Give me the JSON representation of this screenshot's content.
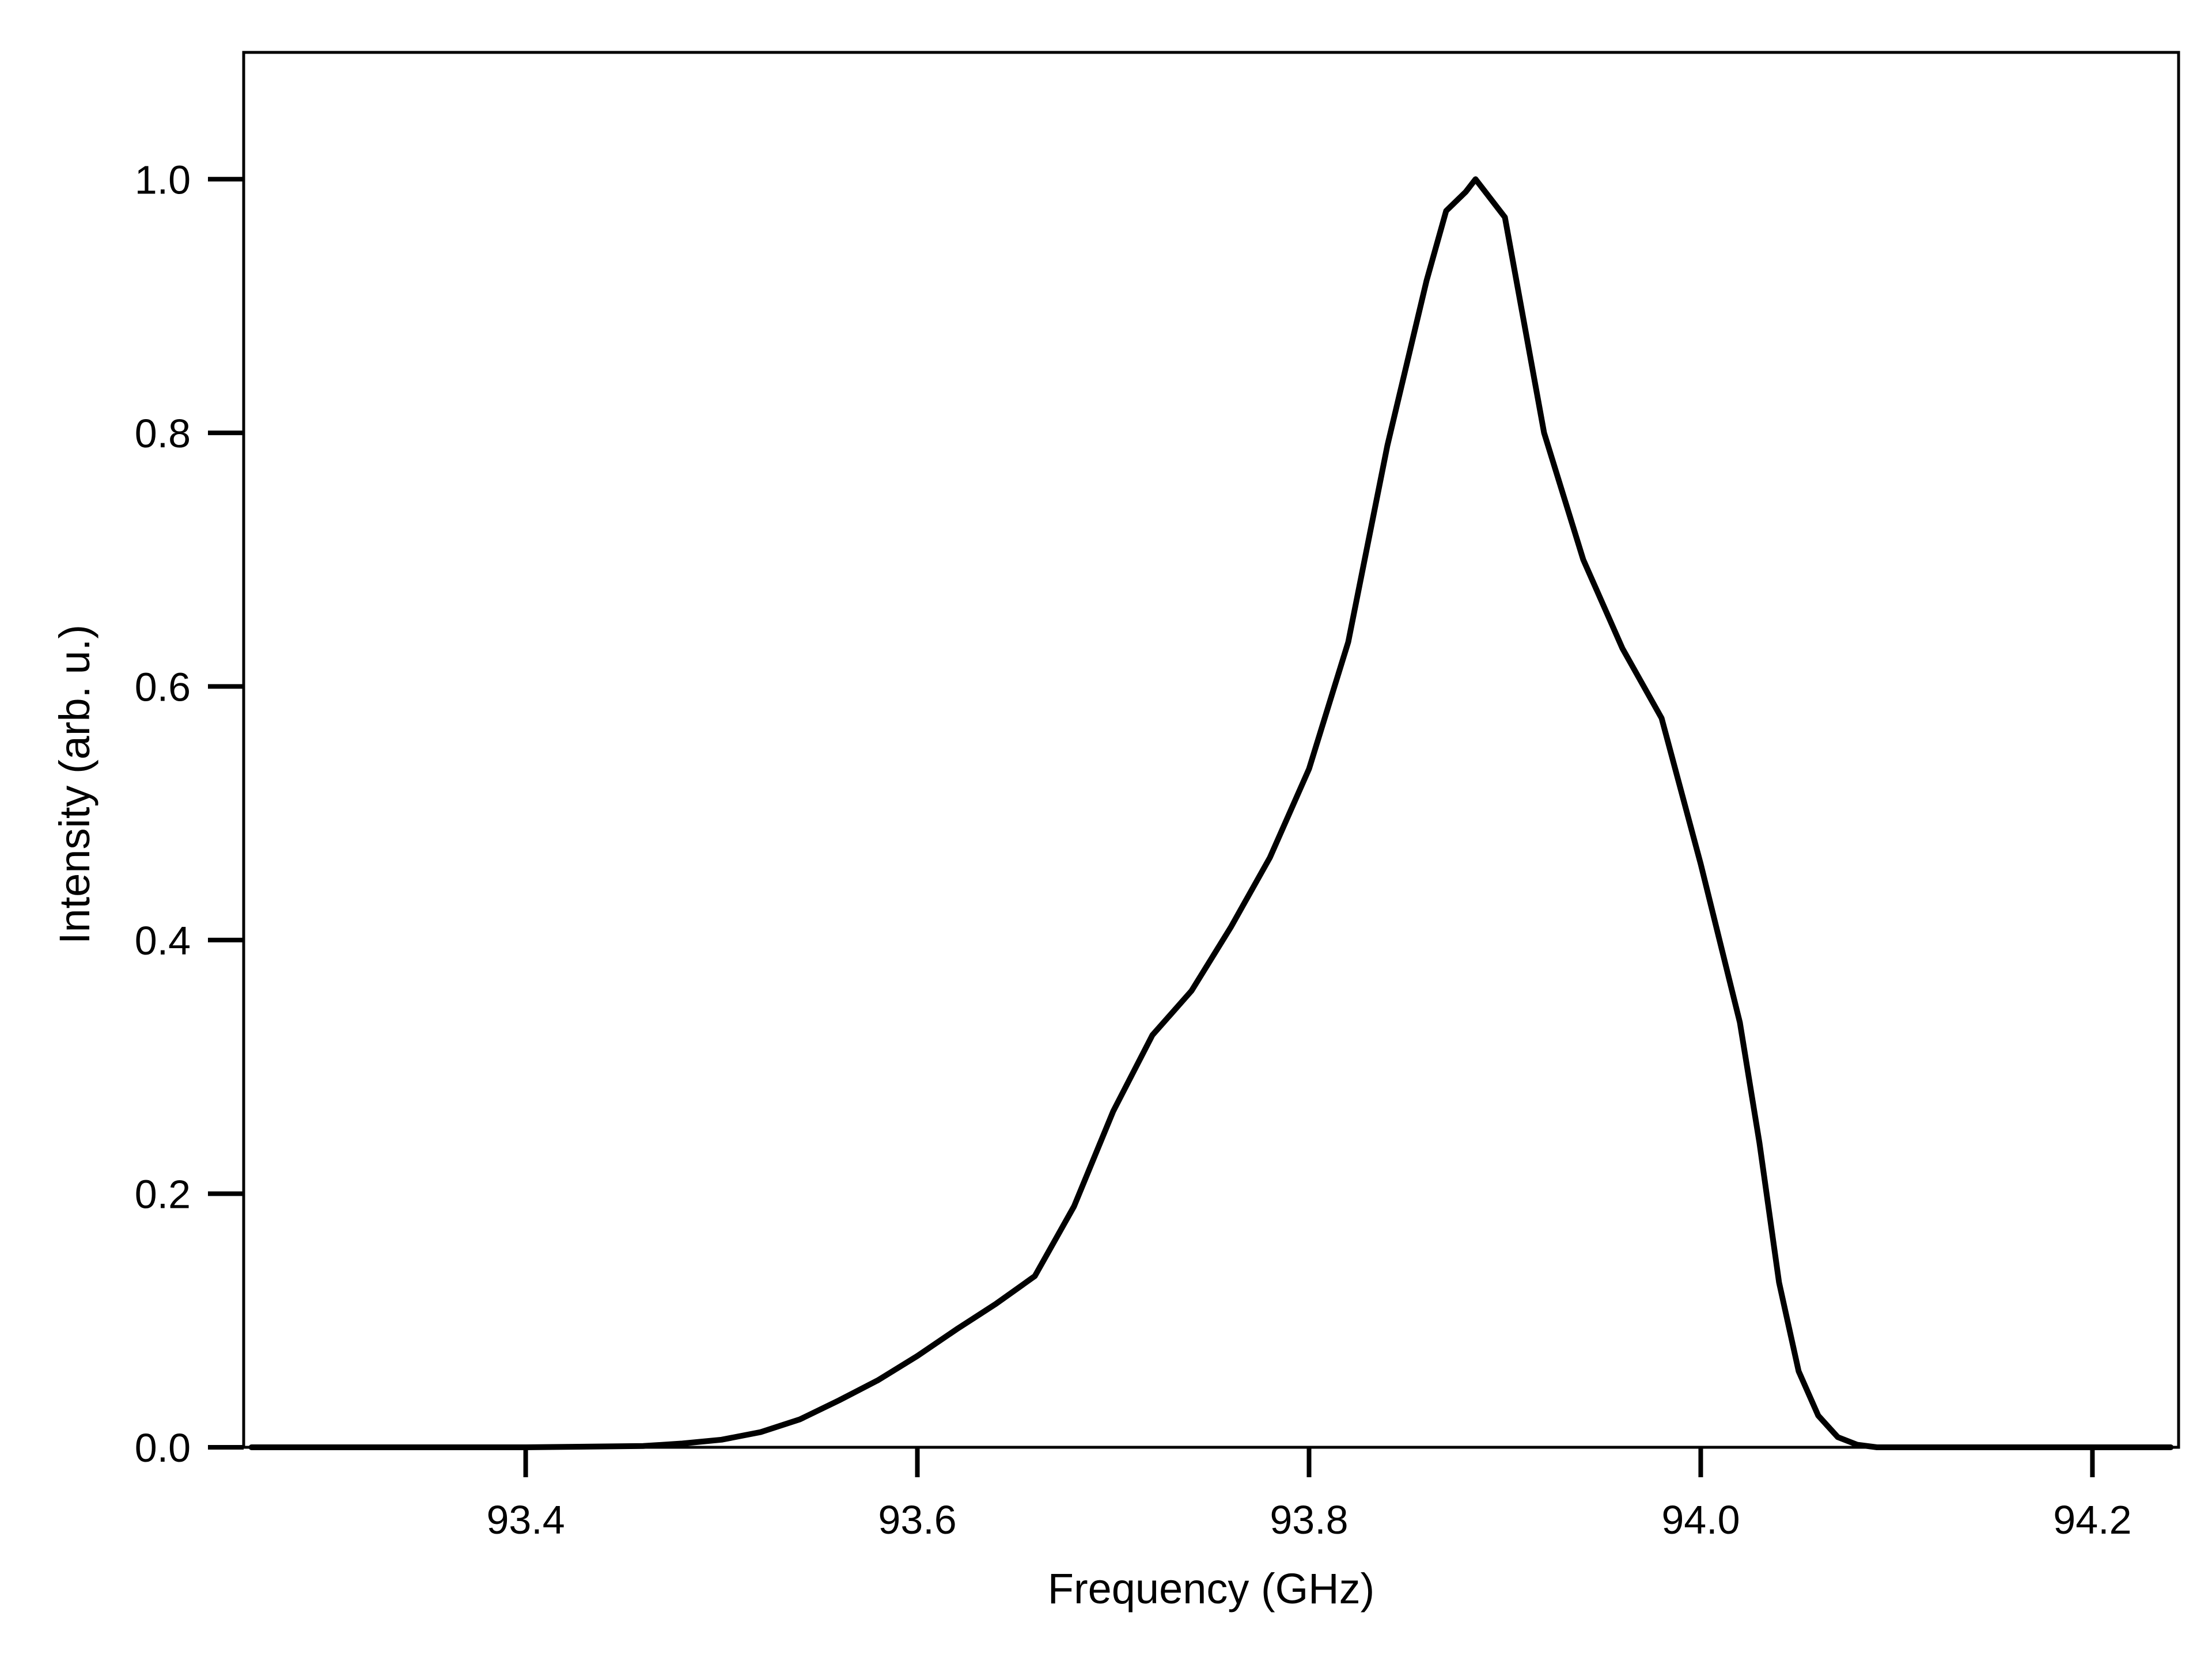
{
  "chart_data": {
    "type": "line",
    "title": "",
    "xlabel": "Frequency (GHz)",
    "ylabel": "Intensity (arb. u.)",
    "xlim": [
      93.256,
      94.244
    ],
    "ylim": [
      0.0,
      1.1
    ],
    "x_ticks": [
      "93.4",
      "93.6",
      "93.8",
      "94.0",
      "94.2"
    ],
    "y_ticks": [
      "0.0",
      "0.2",
      "0.4",
      "0.6",
      "0.8",
      "1.0"
    ],
    "grid": false,
    "legend": "none",
    "colors": {
      "line": "#000000",
      "axes": "#000000",
      "background": "#ffffff"
    },
    "series": [
      {
        "x": [
          93.26,
          93.4,
          93.46,
          93.48,
          93.5,
          93.52,
          93.54,
          93.56,
          93.58,
          93.6,
          93.62,
          93.64,
          93.66,
          93.68,
          93.7,
          93.72,
          93.74,
          93.76,
          93.78,
          93.8,
          93.82,
          93.84,
          93.86,
          93.87,
          93.88,
          93.885,
          93.89,
          93.9,
          93.92,
          93.94,
          93.96,
          93.98,
          94.0,
          94.02,
          94.03,
          94.04,
          94.05,
          94.06,
          94.07,
          94.08,
          94.09,
          94.1,
          94.24
        ],
        "y": [
          0.0,
          0.0,
          0.001,
          0.003,
          0.006,
          0.012,
          0.022,
          0.037,
          0.053,
          0.072,
          0.093,
          0.113,
          0.135,
          0.19,
          0.265,
          0.325,
          0.36,
          0.41,
          0.465,
          0.535,
          0.635,
          0.79,
          0.92,
          0.975,
          0.99,
          1.0,
          0.99,
          0.97,
          0.8,
          0.7,
          0.63,
          0.575,
          0.46,
          0.335,
          0.24,
          0.13,
          0.06,
          0.025,
          0.008,
          0.002,
          0.0,
          0.0,
          0.0
        ]
      }
    ]
  }
}
